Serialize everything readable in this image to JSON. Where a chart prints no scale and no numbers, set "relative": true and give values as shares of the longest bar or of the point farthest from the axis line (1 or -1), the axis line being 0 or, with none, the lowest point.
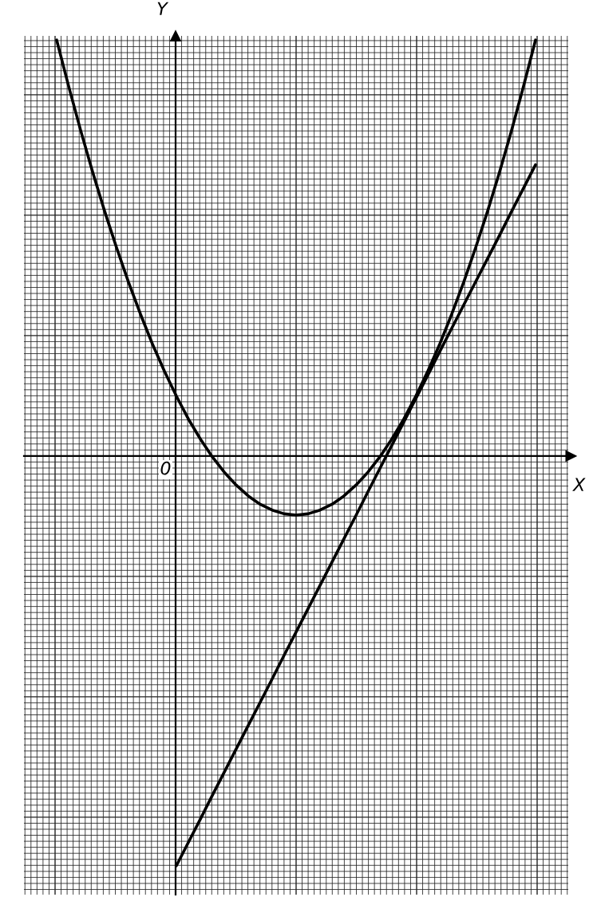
{
  "chart_data": {
    "type": "line",
    "relative": true,
    "grid": true,
    "xlabel": "X",
    "ylabel": "Y",
    "annotations": [
      "0"
    ],
    "categories": [
      null,
      null,
      null,
      null,
      null,
      null,
      null,
      null,
      null,
      null,
      null,
      null,
      null,
      null,
      null,
      null,
      null,
      null,
      null,
      null,
      null,
      null,
      null,
      null,
      null,
      null,
      null,
      null,
      null,
      null,
      null,
      null,
      null,
      null,
      null,
      null,
      null,
      null,
      null,
      null,
      null
    ],
    "series": [
      {
        "color": "#000000",
        "values": [
          1.0,
          0.889,
          0.783,
          0.683,
          0.589,
          0.501,
          0.418,
          0.341,
          0.269,
          0.204,
          0.144,
          0.089,
          0.041,
          -0.002,
          -0.039,
          -0.07,
          -0.096,
          -0.116,
          -0.13,
          -0.139,
          -0.142,
          -0.139,
          -0.13,
          -0.116,
          -0.096,
          -0.07,
          -0.039,
          -0.002,
          0.041,
          0.089,
          0.144,
          0.204,
          0.269,
          0.341,
          0.418,
          0.501,
          0.589,
          0.683,
          0.783,
          0.889,
          1.0
        ]
      },
      {
        "color": "#000000",
        "values": [
          null,
          null,
          null,
          null,
          null,
          null,
          null,
          null,
          null,
          null,
          -0.985,
          -0.929,
          -0.873,
          -0.816,
          -0.76,
          -0.704,
          -0.648,
          -0.592,
          -0.536,
          -0.479,
          -0.423,
          -0.367,
          -0.311,
          -0.255,
          -0.199,
          -0.143,
          -0.086,
          -0.03,
          0.026,
          0.082,
          0.138,
          0.194,
          0.251,
          0.307,
          0.363,
          0.419,
          0.475,
          0.531,
          0.588,
          0.644,
          0.7
        ]
      }
    ]
  }
}
